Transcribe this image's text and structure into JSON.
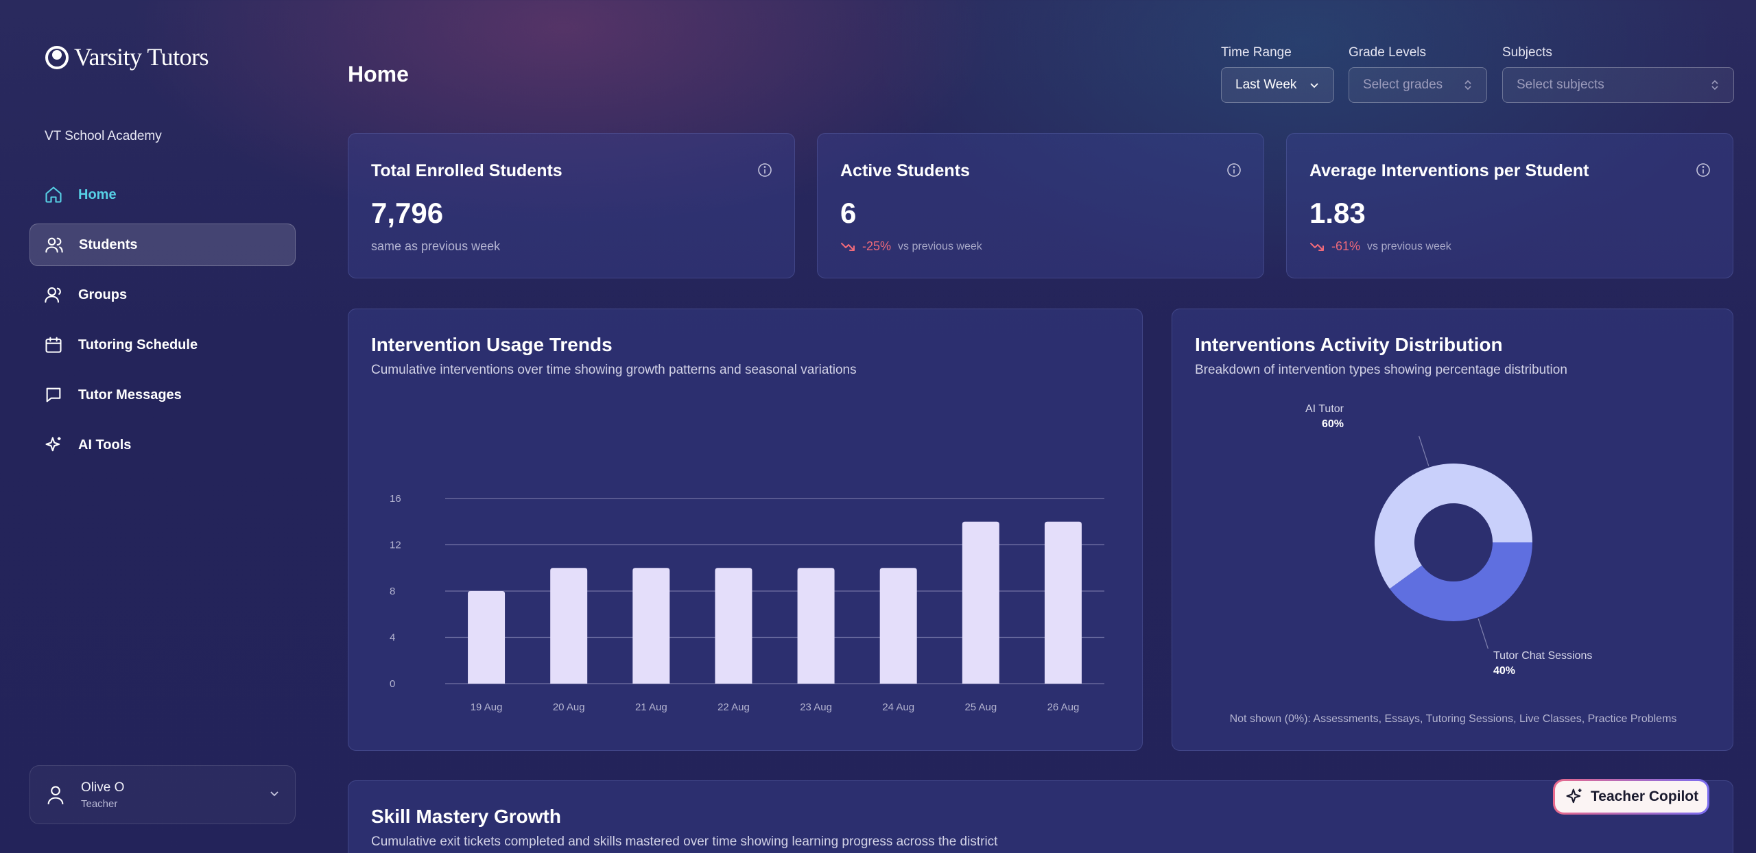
{
  "brand": {
    "name": "Varsity Tutors"
  },
  "org": {
    "name": "VT School Academy"
  },
  "nav": {
    "items": [
      {
        "label": "Home",
        "icon": "home-icon"
      },
      {
        "label": "Students",
        "icon": "students-icon"
      },
      {
        "label": "Groups",
        "icon": "groups-icon"
      },
      {
        "label": "Tutoring Schedule",
        "icon": "calendar-icon"
      },
      {
        "label": "Tutor Messages",
        "icon": "message-icon"
      },
      {
        "label": "AI Tools",
        "icon": "sparkle-icon"
      }
    ],
    "active": "Students"
  },
  "user": {
    "name": "Olive O",
    "role": "Teacher"
  },
  "header": {
    "title": "Home"
  },
  "filters": {
    "time_range": {
      "label": "Time Range",
      "value": "Last Week"
    },
    "grade_levels": {
      "label": "Grade Levels",
      "placeholder": "Select grades"
    },
    "subjects": {
      "label": "Subjects",
      "placeholder": "Select subjects"
    }
  },
  "stats": [
    {
      "title": "Total Enrolled Students",
      "value": "7,796",
      "sub": "same as previous week"
    },
    {
      "title": "Active Students",
      "value": "6",
      "change": "-25%",
      "vs": "vs previous week"
    },
    {
      "title": "Average Interventions per Student",
      "value": "1.83",
      "change": "-61%",
      "vs": "vs previous week"
    }
  ],
  "usage_trends": {
    "title": "Intervention Usage Trends",
    "subtitle": "Cumulative interventions over time showing growth patterns and seasonal variations"
  },
  "distribution": {
    "title": "Interventions Activity Distribution",
    "subtitle": "Breakdown of intervention types showing percentage distribution",
    "footnote": "Not shown (0%): Assessments, Essays, Tutoring Sessions, Live Classes, Practice Problems"
  },
  "skill_mastery": {
    "title": "Skill Mastery Growth",
    "subtitle": "Cumulative exit tickets completed and skills mastered over time showing learning progress across the district"
  },
  "copilot": {
    "label": "Teacher Copilot"
  },
  "colors": {
    "accent": "#57d1e6",
    "bar": "#e4defa",
    "donut_light": "#c9d0fb",
    "donut_dark": "#5f6fe0",
    "negative": "#f06a7a"
  },
  "chart_data": [
    {
      "type": "bar",
      "categories": [
        "19 Aug",
        "20 Aug",
        "21 Aug",
        "22 Aug",
        "23 Aug",
        "24 Aug",
        "25 Aug",
        "26 Aug"
      ],
      "values": [
        8,
        10,
        10,
        10,
        10,
        10,
        14,
        14
      ],
      "ylim": [
        0,
        16
      ],
      "yticks": [
        0,
        4,
        8,
        12,
        16
      ],
      "grid": true
    },
    {
      "type": "pie",
      "slices": [
        {
          "label": "AI Tutor",
          "value": 60,
          "display": "60%"
        },
        {
          "label": "Tutor Chat Sessions",
          "value": 40,
          "display": "40%"
        }
      ]
    }
  ]
}
